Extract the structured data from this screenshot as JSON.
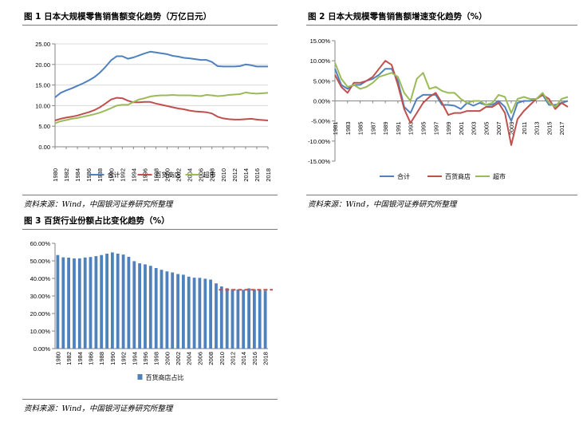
{
  "fig1": {
    "title": "图 1 日本大规模零售销售额变化趋势（万亿日元）",
    "source": "资料来源：Wind，中国银河证券研究所整理"
  },
  "fig2": {
    "title": "图 2 日本大规模零售销售额增速变化趋势（%）"
  },
  "fig3": {
    "title": "图 3 百货行业份额占比变化趋势（%）",
    "source": "资料来源：Wind，中国银河证券研究所整理"
  },
  "fig2_source": "资料来源：Wind，中国银河证券研究所整理",
  "colors": {
    "blue": "#4f81bd",
    "red": "#c0504d",
    "green": "#9bbb59",
    "bar": "#4f81bd",
    "axis": "#868686"
  },
  "chart_data": [
    {
      "id": "c1",
      "type": "line",
      "title": "日本大规模零售销售额变化趋势（万亿日元）",
      "x": [
        1980,
        1981,
        1982,
        1983,
        1984,
        1985,
        1986,
        1987,
        1988,
        1989,
        1990,
        1991,
        1992,
        1993,
        1994,
        1995,
        1996,
        1997,
        1998,
        1999,
        2000,
        2001,
        2002,
        2003,
        2004,
        2005,
        2006,
        2007,
        2008,
        2009,
        2010,
        2011,
        2012,
        2013,
        2014,
        2015,
        2016,
        2017,
        2018
      ],
      "x_tick_labels": [
        "1980",
        "1982",
        "1984",
        "1986",
        "1988",
        "1990",
        "1992",
        "1994",
        "1996",
        "1998",
        "2000",
        "2002",
        "2004",
        "2006",
        "2008",
        "2010",
        "2012",
        "2014",
        "2016",
        "2018"
      ],
      "y_tick_labels": [
        "0.00",
        "5.00",
        "10.00",
        "15.00",
        "20.00",
        "25.00"
      ],
      "ylim": [
        0,
        25
      ],
      "grid": "horizontal",
      "legend": "bottom",
      "series": [
        {
          "name": "合计",
          "color": "#4f81bd",
          "values": [
            12.0,
            13.1,
            13.7,
            14.2,
            14.8,
            15.4,
            16.1,
            16.9,
            18.0,
            19.4,
            21.0,
            22.0,
            22.0,
            21.4,
            21.7,
            22.2,
            22.7,
            23.1,
            22.9,
            22.7,
            22.5,
            22.1,
            21.9,
            21.6,
            21.5,
            21.3,
            21.1,
            21.1,
            20.6,
            19.6,
            19.5,
            19.5,
            19.5,
            19.6,
            20.0,
            19.8,
            19.5,
            19.5,
            19.5
          ]
        },
        {
          "name": "百货商店",
          "color": "#c0504d",
          "values": [
            6.4,
            6.8,
            7.1,
            7.3,
            7.6,
            8.0,
            8.4,
            8.9,
            9.6,
            10.5,
            11.5,
            11.9,
            11.8,
            11.2,
            10.8,
            10.8,
            10.9,
            10.9,
            10.5,
            10.2,
            9.9,
            9.6,
            9.3,
            9.1,
            8.8,
            8.6,
            8.5,
            8.4,
            8.1,
            7.3,
            6.9,
            6.7,
            6.6,
            6.6,
            6.7,
            6.8,
            6.6,
            6.5,
            6.4
          ]
        },
        {
          "name": "超市",
          "color": "#9bbb59",
          "values": [
            5.7,
            6.2,
            6.5,
            6.8,
            7.0,
            7.3,
            7.6,
            7.9,
            8.3,
            8.8,
            9.4,
            10.0,
            10.2,
            10.2,
            10.9,
            11.5,
            11.8,
            12.2,
            12.4,
            12.5,
            12.5,
            12.6,
            12.5,
            12.5,
            12.5,
            12.4,
            12.3,
            12.6,
            12.5,
            12.3,
            12.4,
            12.6,
            12.7,
            12.8,
            13.2,
            13.0,
            12.9,
            13.0,
            13.1
          ]
        }
      ]
    },
    {
      "id": "c2",
      "type": "line",
      "title": "日本大规模零售销售额增速变化趋势（%）",
      "x": [
        1981,
        1982,
        1983,
        1984,
        1985,
        1986,
        1987,
        1988,
        1989,
        1990,
        1991,
        1992,
        1993,
        1994,
        1995,
        1996,
        1997,
        1998,
        1999,
        2000,
        2001,
        2002,
        2003,
        2004,
        2005,
        2006,
        2007,
        2008,
        2009,
        2010,
        2011,
        2012,
        2013,
        2014,
        2015,
        2016,
        2017,
        2018
      ],
      "x_tick_labels": [
        "1981",
        "1983",
        "1985",
        "1987",
        "1989",
        "1991",
        "1993",
        "1995",
        "1997",
        "1999",
        "2001",
        "2003",
        "2005",
        "2007",
        "2009",
        "2011",
        "2013",
        "2015",
        "2017"
      ],
      "y_tick_labels": [
        "-15.00%",
        "-10.00%",
        "-5.00%",
        "0.00%",
        "5.00%",
        "10.00%",
        "15.00%"
      ],
      "ylim": [
        -15,
        15
      ],
      "grid": "none",
      "legend": "bottom",
      "series": [
        {
          "name": "合计",
          "color": "#4f81bd",
          "values": [
            8.0,
            4.0,
            3.0,
            4.0,
            4.0,
            5.0,
            5.5,
            6.5,
            8.0,
            8.0,
            5.0,
            -1.5,
            -3.0,
            0.5,
            1.5,
            1.5,
            1.5,
            -1.0,
            -1.0,
            -1.2,
            -2.0,
            -0.5,
            -1.2,
            -0.5,
            -1.0,
            -1.0,
            0.0,
            -1.5,
            -5.0,
            -0.5,
            0.0,
            0.0,
            0.5,
            1.5,
            -1.0,
            -1.0,
            -0.5,
            0.0
          ]
        },
        {
          "name": "百货商店",
          "color": "#c0504d",
          "values": [
            6.5,
            3.5,
            2.0,
            4.5,
            4.5,
            5.0,
            6.0,
            8.0,
            10.0,
            9.0,
            4.0,
            -2.0,
            -5.5,
            -3.0,
            -0.5,
            1.0,
            2.0,
            -0.5,
            -3.5,
            -3.0,
            -3.0,
            -2.5,
            -2.5,
            -2.5,
            -1.5,
            -1.5,
            -0.5,
            -3.0,
            -11.0,
            -4.5,
            -2.5,
            -1.0,
            0.5,
            1.5,
            0.5,
            -2.0,
            -0.5,
            -1.5
          ]
        },
        {
          "name": "超市",
          "color": "#9bbb59",
          "values": [
            9.5,
            5.5,
            3.5,
            4.0,
            3.0,
            3.5,
            4.5,
            6.0,
            6.5,
            7.0,
            6.0,
            2.0,
            0.0,
            5.5,
            7.0,
            3.0,
            3.5,
            2.5,
            2.0,
            2.0,
            0.5,
            -0.5,
            0.0,
            0.0,
            -1.0,
            -0.5,
            1.5,
            1.0,
            -3.0,
            0.5,
            1.0,
            0.5,
            0.5,
            2.0,
            -0.5,
            -1.5,
            0.5,
            1.0
          ]
        }
      ]
    },
    {
      "id": "c3",
      "type": "bar",
      "title": "百货行业份额占比变化趋势（%）",
      "categories": [
        1980,
        1981,
        1982,
        1983,
        1984,
        1985,
        1986,
        1987,
        1988,
        1989,
        1990,
        1991,
        1992,
        1993,
        1994,
        1995,
        1996,
        1997,
        1998,
        1999,
        2000,
        2001,
        2002,
        2003,
        2004,
        2005,
        2006,
        2007,
        2008,
        2009,
        2010,
        2011,
        2012,
        2013,
        2014,
        2015,
        2016,
        2017,
        2018
      ],
      "x_tick_labels": [
        "1980",
        "1982",
        "1984",
        "1986",
        "1988",
        "1990",
        "1992",
        "1994",
        "1996",
        "1998",
        "2000",
        "2002",
        "2004",
        "2006",
        "2008",
        "2010",
        "2012",
        "2014",
        "2016",
        "2018"
      ],
      "y_tick_labels": [
        "0.00%",
        "10.00%",
        "20.00%",
        "30.00%",
        "40.00%",
        "50.00%",
        "60.00%"
      ],
      "ylim": [
        0,
        60
      ],
      "grid": "none",
      "legend": "bottom",
      "series": [
        {
          "name": "百货商店占比",
          "color": "#4f81bd",
          "values": [
            53.3,
            52.0,
            51.8,
            51.4,
            51.4,
            51.9,
            52.2,
            52.7,
            53.3,
            54.1,
            54.8,
            54.1,
            53.6,
            52.3,
            49.8,
            48.6,
            48.0,
            47.2,
            45.9,
            44.9,
            44.0,
            43.4,
            42.5,
            42.1,
            41.0,
            40.4,
            40.3,
            39.8,
            39.3,
            37.2,
            35.4,
            34.4,
            33.8,
            33.7,
            33.5,
            34.3,
            33.8,
            33.3,
            33.0
          ]
        }
      ],
      "reference_line": {
        "value": 33.5,
        "from": 2010,
        "to": 2018,
        "color": "#c0504d",
        "style": "dashed"
      }
    }
  ]
}
